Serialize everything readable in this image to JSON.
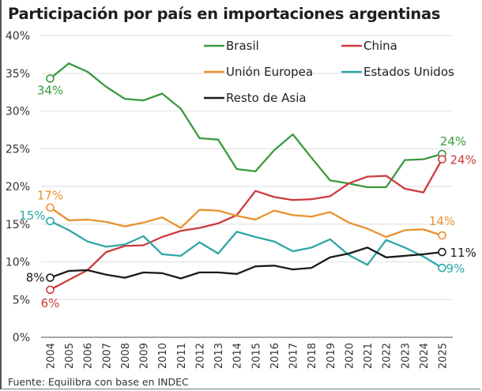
{
  "chart_data": {
    "type": "line",
    "title": "Participación por país en importaciones argentinas",
    "xlabel": "",
    "ylabel": "",
    "ylim": [
      0,
      40
    ],
    "yticks": [
      0,
      5,
      10,
      15,
      20,
      25,
      30,
      35,
      40
    ],
    "ytick_labels": [
      "0%",
      "5%",
      "10%",
      "15%",
      "20%",
      "25%",
      "30%",
      "35%",
      "40%"
    ],
    "x": [
      2004,
      2005,
      2006,
      2007,
      2008,
      2009,
      2010,
      2011,
      2012,
      2013,
      2014,
      2015,
      2016,
      2017,
      2018,
      2019,
      2020,
      2021,
      2022,
      2023,
      2024,
      2025
    ],
    "x_labels": [
      "2004",
      "2005",
      "2006",
      "2007",
      "2008",
      "2009",
      "2010",
      "2011",
      "2012",
      "2013",
      "2014",
      "2015",
      "2016",
      "2017",
      "2018",
      "2019",
      "2020",
      "2021",
      "2022",
      "2023",
      "2024",
      "2025"
    ],
    "grid": true,
    "legend_position": "top-right",
    "series": [
      {
        "name": "Brasil",
        "color": "#3a9a3e",
        "values": [
          34.3,
          36.3,
          35.2,
          33.2,
          31.6,
          31.4,
          32.3,
          30.3,
          26.4,
          26.2,
          22.3,
          22.0,
          24.8,
          26.9,
          23.8,
          20.8,
          20.4,
          19.9,
          19.9,
          23.5,
          23.6,
          24.3
        ],
        "start_label": "34%",
        "end_label": "24%"
      },
      {
        "name": "China",
        "color": "#cc3b3b",
        "values": [
          6.3,
          7.6,
          8.9,
          11.3,
          12.1,
          12.2,
          13.3,
          14.1,
          14.5,
          15.1,
          16.2,
          19.4,
          18.6,
          18.2,
          18.3,
          18.7,
          20.4,
          21.3,
          21.4,
          19.7,
          19.2,
          23.6
        ],
        "start_label": "6%",
        "end_label": "24%"
      },
      {
        "name": "Unión Europea",
        "color": "#e8922e",
        "values": [
          17.2,
          15.5,
          15.6,
          15.3,
          14.7,
          15.2,
          15.9,
          14.5,
          16.9,
          16.8,
          16.1,
          15.6,
          16.8,
          16.2,
          16.0,
          16.6,
          15.2,
          14.4,
          13.3,
          14.2,
          14.3,
          13.5
        ],
        "start_label": "17%",
        "end_label": "14%"
      },
      {
        "name": "Estados Unidos",
        "color": "#2ea6a6",
        "values": [
          15.4,
          14.2,
          12.7,
          12.0,
          12.3,
          13.4,
          11.0,
          10.8,
          12.6,
          11.1,
          14.0,
          13.3,
          12.7,
          11.4,
          11.9,
          13.0,
          10.9,
          9.6,
          12.9,
          11.9,
          10.7,
          9.2
        ],
        "start_label": "15%",
        "end_label": "9%"
      },
      {
        "name": "Resto de Asia",
        "color": "#1a1a1a",
        "values": [
          7.9,
          8.8,
          8.9,
          8.3,
          7.9,
          8.6,
          8.5,
          7.8,
          8.6,
          8.6,
          8.4,
          9.4,
          9.5,
          9.0,
          9.2,
          10.6,
          11.1,
          11.9,
          10.6,
          10.8,
          11.0,
          11.3
        ],
        "start_label": "8%",
        "end_label": "11%"
      }
    ]
  },
  "source": "Fuente: Equilibra con base en INDEC"
}
